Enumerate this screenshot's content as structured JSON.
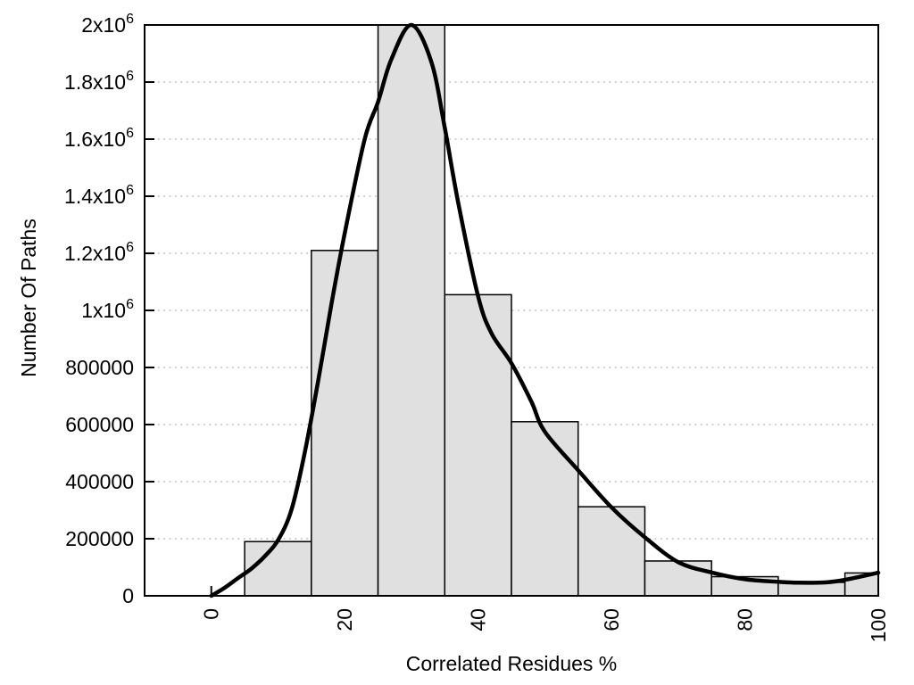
{
  "chart_data": {
    "type": "bar",
    "subtype": "histogram-with-smooth-density-curve",
    "title": "",
    "xlabel": "Correlated Residues %",
    "ylabel": "Number Of Paths",
    "xlim": [
      -10,
      100
    ],
    "ylim": [
      0,
      2000000
    ],
    "grid": "horizontal-dotted",
    "legend_position": "none",
    "x_tick_label_rotation_deg": -90,
    "xticks": [
      {
        "v": 0,
        "label": "0"
      },
      {
        "v": 20,
        "label": "20"
      },
      {
        "v": 40,
        "label": "40"
      },
      {
        "v": 60,
        "label": "60"
      },
      {
        "v": 80,
        "label": "80"
      },
      {
        "v": 100,
        "label": "100"
      }
    ],
    "yticks": [
      {
        "v": 0,
        "label": "0"
      },
      {
        "v": 200000,
        "label": "200000"
      },
      {
        "v": 400000,
        "label": "400000"
      },
      {
        "v": 600000,
        "label": "600000"
      },
      {
        "v": 800000,
        "label": "800000"
      },
      {
        "v": 1000000,
        "label": "1x10^6"
      },
      {
        "v": 1200000,
        "label": "1.2x10^6"
      },
      {
        "v": 1400000,
        "label": "1.4x10^6"
      },
      {
        "v": 1600000,
        "label": "1.6x10^6"
      },
      {
        "v": 1800000,
        "label": "1.8x10^6"
      },
      {
        "v": 2000000,
        "label": "2x10^6"
      }
    ],
    "histogram": {
      "bin_width": 10,
      "bin_centers": [
        10,
        20,
        30,
        40,
        50,
        60,
        70,
        80,
        90,
        100
      ],
      "values": [
        190000,
        1210000,
        2000000,
        1055000,
        610000,
        312000,
        122000,
        67000,
        47000,
        80000
      ],
      "note": "last bin clipped at x=100 plot edge"
    },
    "curve_points": [
      [
        0,
        0
      ],
      [
        2,
        28000
      ],
      [
        4,
        62000
      ],
      [
        6,
        95000
      ],
      [
        8,
        138000
      ],
      [
        10,
        195000
      ],
      [
        12,
        300000
      ],
      [
        14,
        500000
      ],
      [
        16,
        750000
      ],
      [
        18,
        1020000
      ],
      [
        20,
        1270000
      ],
      [
        23,
        1600000
      ],
      [
        25,
        1730000
      ],
      [
        27,
        1880000
      ],
      [
        30,
        2000000
      ],
      [
        33,
        1870000
      ],
      [
        35,
        1640000
      ],
      [
        37,
        1380000
      ],
      [
        40,
        1050000
      ],
      [
        42,
        920000
      ],
      [
        45,
        815000
      ],
      [
        48,
        680000
      ],
      [
        50,
        575000
      ],
      [
        55,
        440000
      ],
      [
        60,
        310000
      ],
      [
        65,
        205000
      ],
      [
        70,
        118000
      ],
      [
        75,
        82000
      ],
      [
        80,
        58000
      ],
      [
        85,
        49000
      ],
      [
        88,
        46000
      ],
      [
        92,
        47000
      ],
      [
        95,
        56000
      ],
      [
        100,
        81000
      ]
    ],
    "colors": {
      "bar_fill": "#e0e0e0",
      "bar_stroke": "#000000",
      "curve": "#000000",
      "grid": "#bcbcbc",
      "axis": "#000000",
      "background": "#ffffff",
      "text": "#000000"
    }
  }
}
